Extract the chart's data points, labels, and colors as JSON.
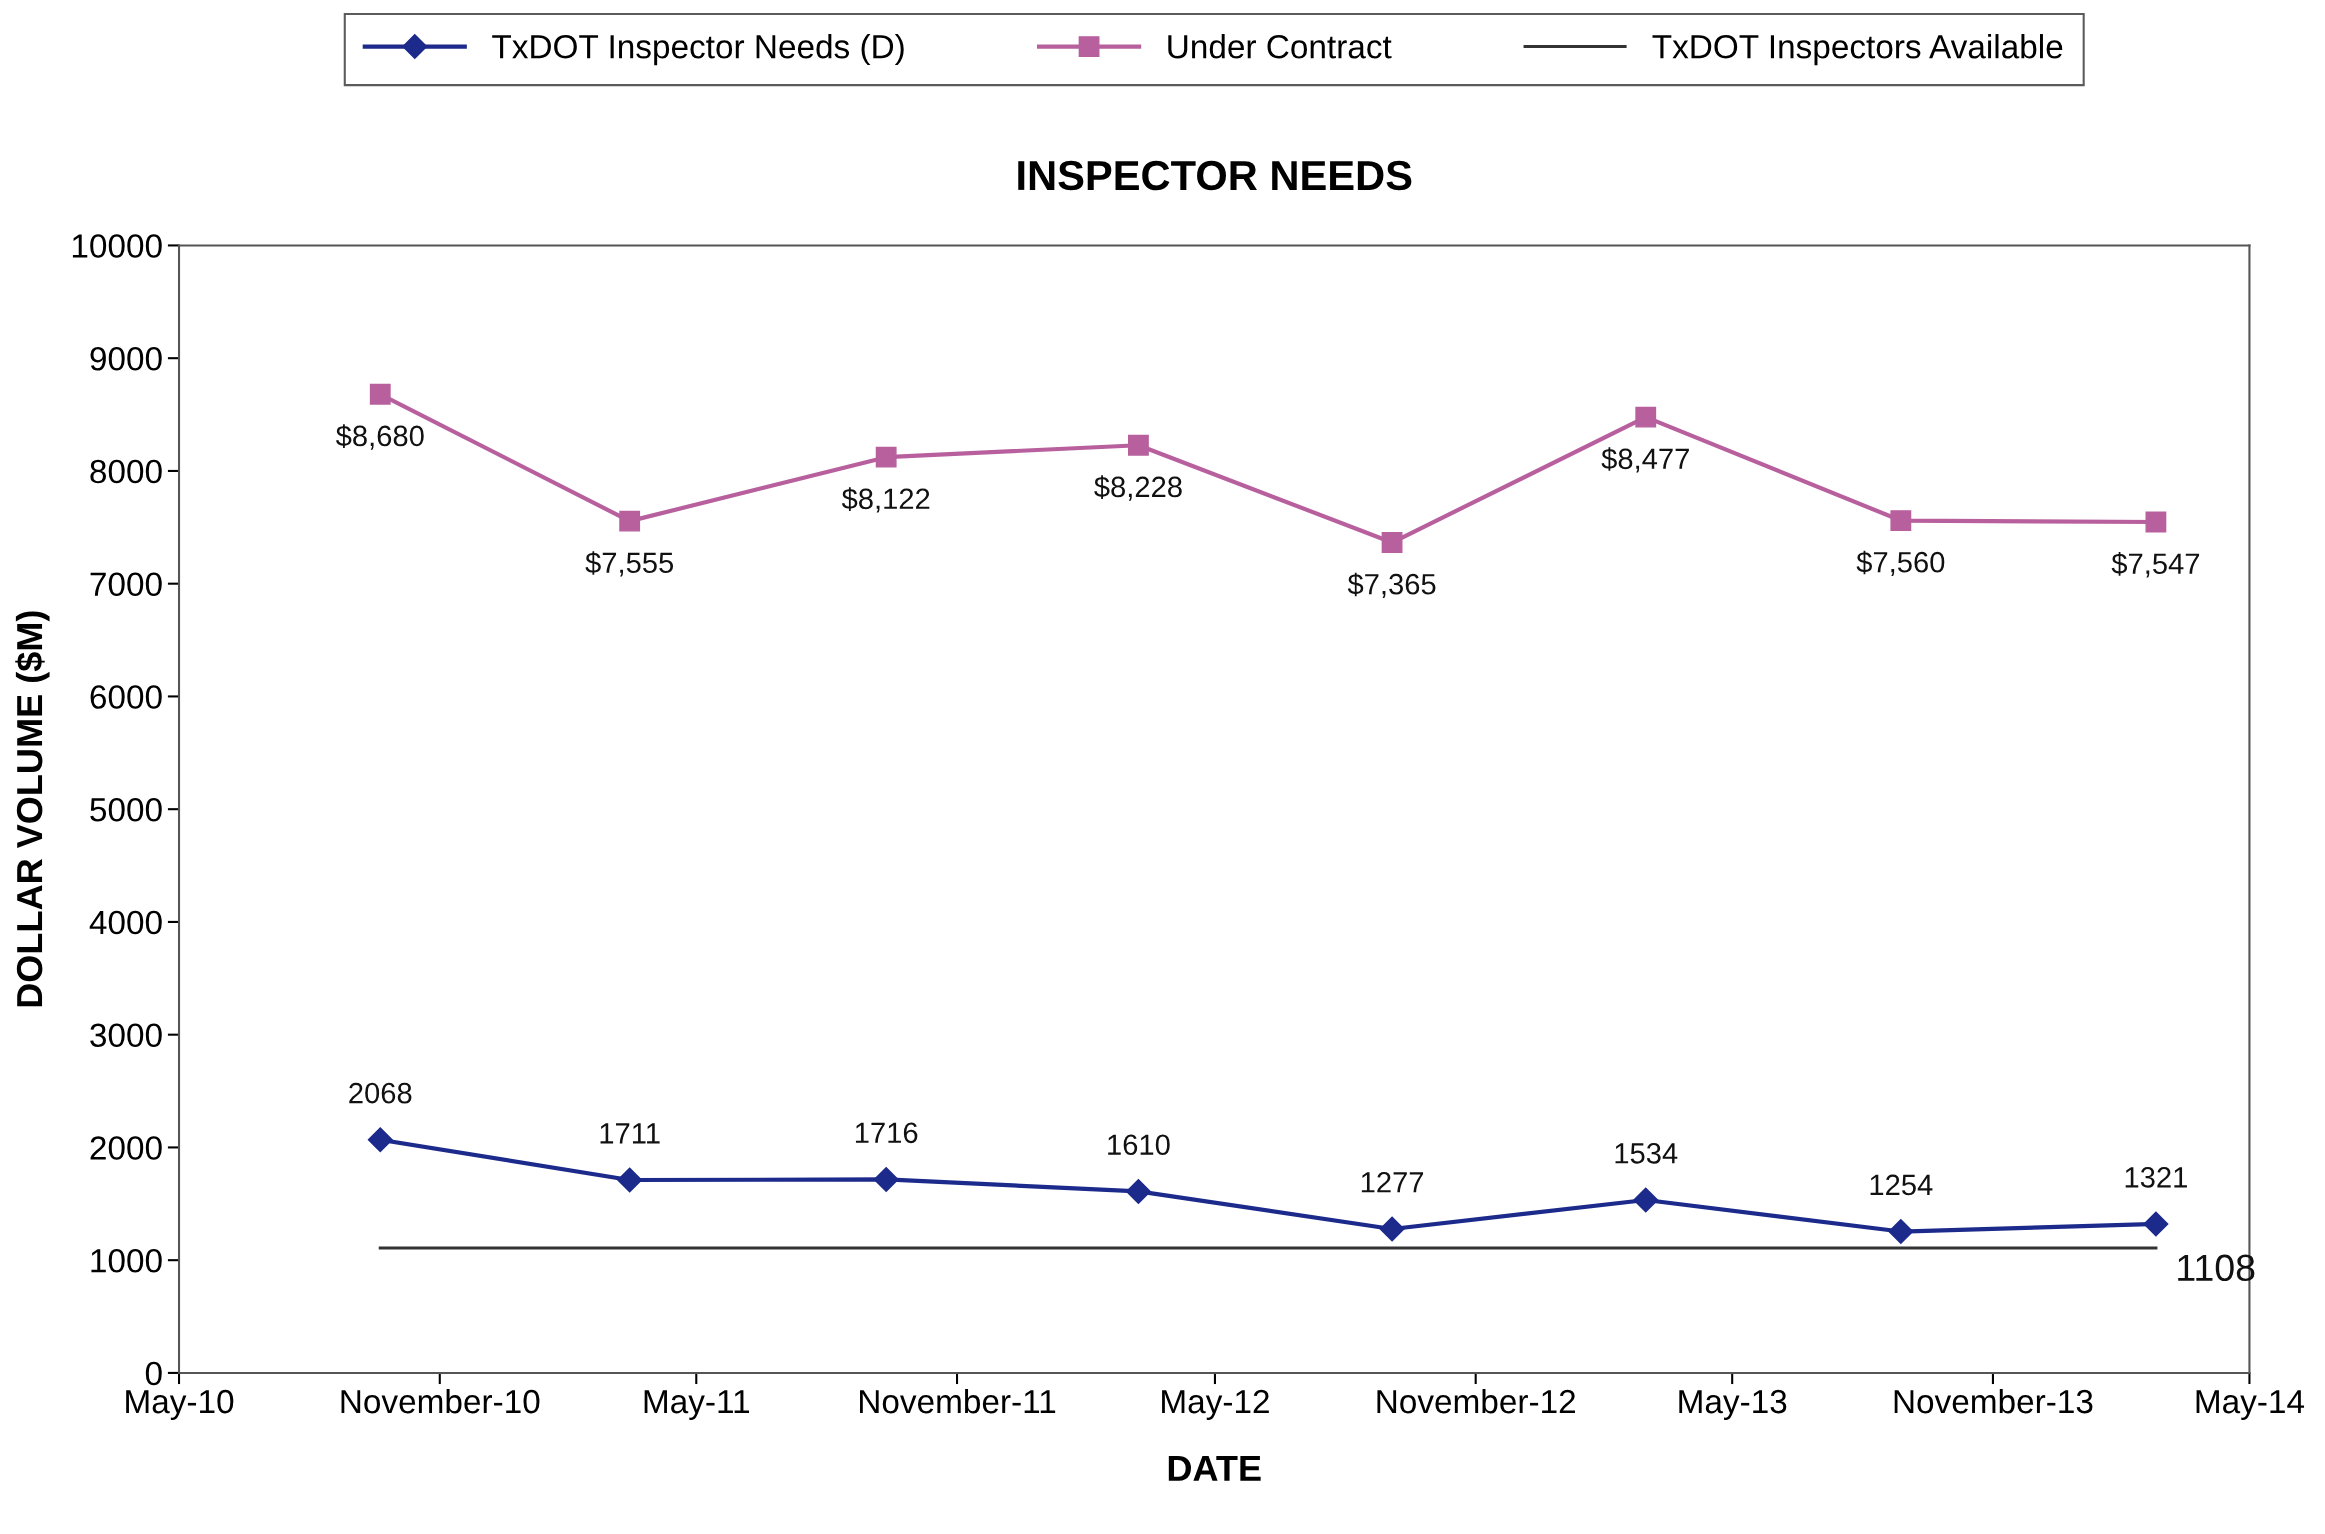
{
  "chart_data": {
    "type": "line",
    "title": "INSPECTOR NEEDS",
    "xlabel": "DATE",
    "ylabel": "DOLLAR VOLUME ($M)",
    "xlim": [
      "2010-05",
      "2014-05"
    ],
    "xticks": [
      {
        "value": "2010-05",
        "label": "May-10"
      },
      {
        "value": "2010-11",
        "label": "November-10"
      },
      {
        "value": "2011-05",
        "label": "May-11"
      },
      {
        "value": "2011-11",
        "label": "November-11"
      },
      {
        "value": "2012-05",
        "label": "May-12"
      },
      {
        "value": "2012-11",
        "label": "November-12"
      },
      {
        "value": "2013-05",
        "label": "May-13"
      },
      {
        "value": "2013-11",
        "label": "November-13"
      },
      {
        "value": "2014-05",
        "label": "May-14"
      }
    ],
    "ylim": [
      0,
      10000
    ],
    "yticks": [
      0,
      1000,
      2000,
      3000,
      4000,
      5000,
      6000,
      7000,
      8000,
      9000,
      10000
    ],
    "grid": false,
    "legend": "top",
    "x": [
      "2010-09-20",
      "2011-03-15",
      "2011-09-12",
      "2012-03-08",
      "2012-09-03",
      "2013-03-01",
      "2013-08-28",
      "2014-02-24"
    ],
    "series": [
      {
        "name": "TxDOT Inspector Needs (D)",
        "color": "#1c2a8c",
        "marker": "diamond",
        "values": [
          2068,
          1711,
          1716,
          1610,
          1277,
          1534,
          1254,
          1321
        ],
        "value_labels": [
          "2068",
          "1711",
          "1716",
          "1610",
          "1277",
          "1534",
          "1254",
          "1321"
        ]
      },
      {
        "name": "Under Contract",
        "color": "#b8609e",
        "marker": "square",
        "values": [
          8680,
          7555,
          8122,
          8228,
          7365,
          8477,
          7560,
          7547
        ],
        "value_labels": [
          "$8,680",
          "$7,555",
          "$8,122",
          "$8,228",
          "$7,365",
          "$8,477",
          "$7,560",
          "$7,547"
        ]
      },
      {
        "name": "TxDOT Inspectors Available",
        "color": "#333333",
        "marker": "none",
        "x": [
          "2010-09-20",
          "2014-02-24"
        ],
        "values": [
          1108,
          1108
        ],
        "value_labels": [
          null,
          "1108"
        ]
      }
    ]
  }
}
